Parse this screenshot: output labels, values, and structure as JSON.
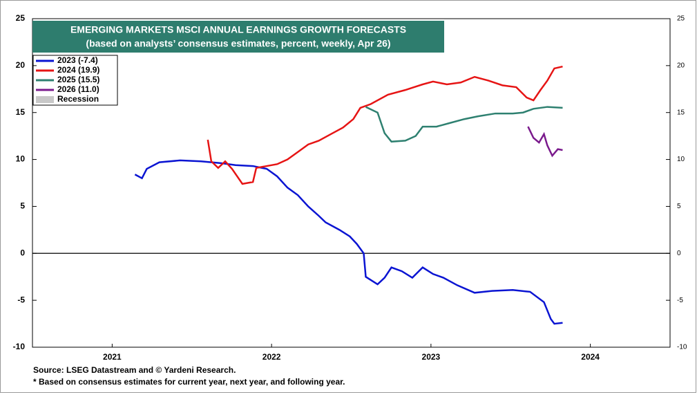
{
  "chart_data": {
    "type": "line",
    "title": "EMERGING MARKETS MSCI ANNUAL EARNINGS GROWTH FORECASTS",
    "subtitle": "(based on analysts’ consensus estimates, percent, weekly, Apr 26)",
    "footnotes": [
      "Source: LSEG Datastream and © Yardeni Research.",
      "* Based on consensus estimates for current year, next year, and following year."
    ],
    "xlim": [
      2021,
      2025
    ],
    "xticks": [
      {
        "value": 2021.5,
        "label": "2021"
      },
      {
        "value": 2022.5,
        "label": "2022"
      },
      {
        "value": 2023.5,
        "label": "2023"
      },
      {
        "value": 2024.5,
        "label": "2024"
      }
    ],
    "ylim": [
      -10,
      25
    ],
    "yticks": [
      -10,
      -5,
      0,
      5,
      10,
      15,
      20,
      25
    ],
    "y2lim": [
      -10,
      25
    ],
    "y2ticks": [
      -10,
      -5,
      0,
      5,
      10,
      15,
      20,
      25
    ],
    "legend_position": "upper left",
    "recession": {
      "name": "Recession",
      "color": "#c8c8c8"
    },
    "series": [
      {
        "name": "2023 (-7.4)",
        "color": "#0a14d2",
        "x": [
          2021.643,
          2021.687,
          2021.717,
          2021.796,
          2021.926,
          2022.057,
          2022.122,
          2022.187,
          2022.274,
          2022.383,
          2022.47,
          2022.535,
          2022.6,
          2022.665,
          2022.73,
          2022.796,
          2022.839,
          2022.926,
          2022.991,
          2023.035,
          2023.078,
          2023.091,
          2023.165,
          2023.209,
          2023.252,
          2023.317,
          2023.383,
          2023.448,
          2023.513,
          2023.578,
          2023.665,
          2023.774,
          2023.883,
          2024.013,
          2024.122,
          2024.209,
          2024.252,
          2024.274,
          2024.326
        ],
        "values": [
          8.4,
          8.0,
          9.0,
          9.7,
          9.9,
          9.8,
          9.7,
          9.6,
          9.4,
          9.3,
          9.0,
          8.2,
          7.0,
          6.2,
          5.0,
          4.0,
          3.3,
          2.5,
          1.8,
          1.0,
          0.0,
          -2.5,
          -3.3,
          -2.6,
          -1.5,
          -1.9,
          -2.6,
          -1.5,
          -2.2,
          -2.6,
          -3.4,
          -4.2,
          -4.0,
          -3.9,
          -4.1,
          -5.2,
          -7.0,
          -7.5,
          -7.4
        ]
      },
      {
        "name": "2024 (19.9)",
        "color": "#e61414",
        "x": [
          2022.1,
          2022.122,
          2022.165,
          2022.209,
          2022.252,
          2022.317,
          2022.383,
          2022.404,
          2022.47,
          2022.535,
          2022.6,
          2022.665,
          2022.73,
          2022.796,
          2022.883,
          2022.948,
          2023.013,
          2023.057,
          2023.122,
          2023.23,
          2023.339,
          2023.448,
          2023.513,
          2023.6,
          2023.687,
          2023.774,
          2023.861,
          2023.948,
          2024.035,
          2024.1,
          2024.143,
          2024.187,
          2024.23,
          2024.274,
          2024.326
        ],
        "values": [
          12.1,
          9.8,
          9.1,
          9.8,
          9.0,
          7.4,
          7.6,
          9.1,
          9.3,
          9.5,
          10.0,
          10.8,
          11.6,
          12.0,
          12.8,
          13.4,
          14.3,
          15.5,
          15.9,
          16.9,
          17.4,
          18.0,
          18.3,
          18.0,
          18.2,
          18.8,
          18.4,
          17.9,
          17.7,
          16.6,
          16.3,
          17.4,
          18.4,
          19.7,
          19.9
        ]
      },
      {
        "name": "2025 (15.5)",
        "color": "#2e8070",
        "x": [
          2023.091,
          2023.165,
          2023.209,
          2023.252,
          2023.339,
          2023.404,
          2023.448,
          2023.535,
          2023.622,
          2023.709,
          2023.796,
          2023.904,
          2024.013,
          2024.078,
          2024.143,
          2024.23,
          2024.326
        ],
        "values": [
          15.6,
          15.0,
          12.8,
          11.9,
          12.0,
          12.5,
          13.5,
          13.5,
          13.9,
          14.3,
          14.6,
          14.9,
          14.9,
          15.0,
          15.4,
          15.6,
          15.5
        ]
      },
      {
        "name": "2026 (11.0)",
        "color": "#7a1a8c",
        "x": [
          2024.109,
          2024.143,
          2024.178,
          2024.209,
          2024.23,
          2024.261,
          2024.296,
          2024.326
        ],
        "values": [
          13.5,
          12.3,
          11.8,
          12.7,
          11.5,
          10.4,
          11.1,
          11.0
        ]
      }
    ]
  }
}
